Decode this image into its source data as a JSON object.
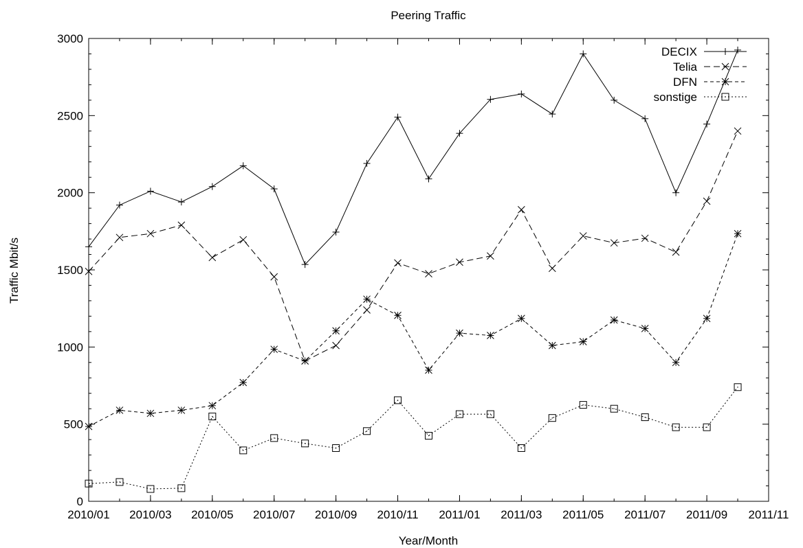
{
  "chart_data": {
    "type": "line",
    "title": "Peering Traffic",
    "xlabel": "Year/Month",
    "ylabel": "Traffic Mbit/s",
    "xlim": [
      "2010/01",
      "2011/11"
    ],
    "ylim": [
      0,
      3000
    ],
    "grid": false,
    "legend_position": "top-right",
    "x_tick_labels": [
      "2010/01",
      "2010/03",
      "2010/05",
      "2010/07",
      "2010/09",
      "2010/11",
      "2011/01",
      "2011/03",
      "2011/05",
      "2011/07",
      "2011/09",
      "2011/11"
    ],
    "y_tick_labels": [
      "0",
      "500",
      "1000",
      "1500",
      "2000",
      "2500",
      "3000"
    ],
    "x": [
      "2010/01",
      "2010/02",
      "2010/03",
      "2010/04",
      "2010/05",
      "2010/06",
      "2010/07",
      "2010/08",
      "2010/09",
      "2010/10",
      "2010/11",
      "2010/12",
      "2011/01",
      "2011/02",
      "2011/03",
      "2011/04",
      "2011/05",
      "2011/06",
      "2011/07",
      "2011/08",
      "2011/09",
      "2011/10"
    ],
    "series": [
      {
        "name": "DECIX",
        "marker": "plus",
        "dash": "solid",
        "values": [
          1650,
          1920,
          2010,
          1940,
          2040,
          2175,
          2025,
          1535,
          1745,
          2190,
          2490,
          2090,
          2385,
          2605,
          2640,
          2510,
          2900,
          2600,
          2480,
          2000,
          2445,
          2925
        ]
      },
      {
        "name": "Telia",
        "marker": "cross",
        "dash": "dashed",
        "values": [
          1490,
          1710,
          1735,
          1790,
          1580,
          1695,
          1455,
          910,
          1010,
          1240,
          1545,
          1475,
          1550,
          1590,
          1890,
          1510,
          1720,
          1675,
          1705,
          1615,
          1945,
          2400
        ]
      },
      {
        "name": "DFN",
        "marker": "star",
        "dash": "short-dashed",
        "values": [
          485,
          590,
          570,
          590,
          620,
          770,
          985,
          910,
          1105,
          1310,
          1205,
          850,
          1090,
          1075,
          1185,
          1010,
          1035,
          1175,
          1120,
          900,
          1185,
          1735
        ]
      },
      {
        "name": "sonstige",
        "marker": "square",
        "dash": "dotted",
        "values": [
          115,
          125,
          80,
          85,
          550,
          330,
          410,
          375,
          345,
          455,
          655,
          425,
          565,
          565,
          345,
          540,
          625,
          600,
          545,
          480,
          480,
          740
        ]
      }
    ]
  }
}
